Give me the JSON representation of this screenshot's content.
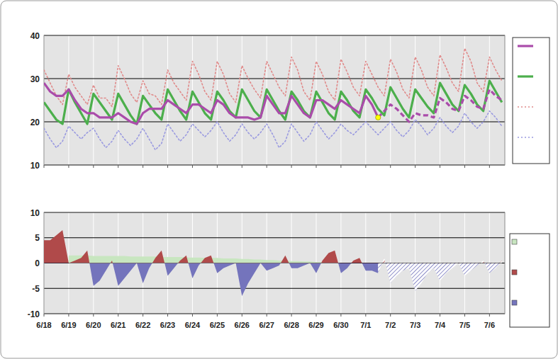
{
  "chart_data": [
    {
      "type": "line",
      "x": [
        0,
        0.25,
        0.5,
        0.75,
        1,
        1.25,
        1.5,
        1.75,
        2,
        2.25,
        2.5,
        2.75,
        3,
        3.25,
        3.5,
        3.75,
        4,
        4.25,
        4.5,
        4.75,
        5,
        5.25,
        5.5,
        5.75,
        6,
        6.25,
        6.5,
        6.75,
        7,
        7.25,
        7.5,
        7.75,
        8,
        8.25,
        8.5,
        8.75,
        9,
        9.25,
        9.5,
        9.75,
        10,
        10.25,
        10.5,
        10.75,
        11,
        11.25,
        11.5,
        11.75,
        12,
        12.25,
        12.5,
        12.75,
        13,
        13.25,
        13.5,
        13.75,
        14,
        14.25,
        14.5,
        14.75,
        15,
        15.25,
        15.5,
        15.75,
        16,
        16.25,
        16.5,
        16.75,
        17,
        17.25,
        17.5,
        17.75,
        18,
        18.25,
        18.5
      ],
      "xlim": [
        0,
        18.62
      ],
      "xticks": [
        0,
        1,
        2,
        3,
        4,
        5,
        6,
        7,
        8,
        9,
        10,
        11,
        12,
        13,
        14,
        15,
        16,
        17,
        18
      ],
      "ylim": [
        10,
        40
      ],
      "yticks": [
        10,
        20,
        30,
        40
      ],
      "grid": true,
      "legend": "right",
      "tick_labels": "y",
      "series": [
        {
          "type": "line",
          "color": "#aa4caa",
          "line_style": "solid",
          "values": [
            29,
            27,
            26,
            26,
            27.5,
            25,
            23,
            22,
            22,
            21,
            21,
            21,
            22,
            21,
            20,
            19.5,
            22,
            23,
            23,
            23,
            25,
            24,
            23,
            22,
            24,
            24,
            23,
            22,
            25,
            24,
            22,
            21,
            21,
            21,
            20.5,
            21,
            26,
            24,
            22,
            22,
            26,
            24,
            22,
            21,
            25,
            25,
            24,
            23,
            25,
            24,
            23,
            22,
            26,
            24,
            21,
            null,
            null,
            null,
            null,
            null,
            null,
            null,
            null,
            null,
            null,
            null,
            null,
            null,
            null,
            null,
            null,
            null,
            null,
            null,
            null
          ]
        },
        {
          "type": "line",
          "color": "#aa4caa",
          "line_style": "dashed",
          "values": [
            null,
            null,
            null,
            null,
            null,
            null,
            null,
            null,
            null,
            null,
            null,
            null,
            null,
            null,
            null,
            null,
            null,
            null,
            null,
            null,
            null,
            null,
            null,
            null,
            null,
            null,
            null,
            null,
            null,
            null,
            null,
            null,
            null,
            null,
            null,
            null,
            null,
            null,
            null,
            null,
            null,
            null,
            null,
            null,
            null,
            null,
            null,
            null,
            null,
            null,
            null,
            null,
            null,
            null,
            21,
            22.5,
            24,
            23,
            21.5,
            20,
            22,
            21.5,
            21.5,
            21,
            25.5,
            24.5,
            23,
            22.5,
            26,
            25,
            23.5,
            23,
            27.5,
            26,
            25
          ]
        },
        {
          "type": "line",
          "color": "#4caf4c",
          "line_style": "solid",
          "values": [
            24.5,
            22.5,
            20.5,
            19.5,
            27.5,
            24.5,
            22,
            19.5,
            26.5,
            24.5,
            22.5,
            20.5,
            26.5,
            24,
            21.5,
            19.5,
            26,
            24,
            22,
            20.5,
            27.5,
            25,
            22.5,
            20.5,
            27,
            24.5,
            22,
            20.5,
            27,
            25,
            22.5,
            21,
            27.5,
            25,
            22.5,
            21,
            27.5,
            25,
            22.5,
            20.5,
            27,
            25,
            22.5,
            21,
            27,
            24.5,
            22,
            20.5,
            27,
            25,
            22.5,
            21,
            27.5,
            25.5,
            23,
            21.5,
            28,
            25.5,
            23,
            21,
            27.5,
            25.5,
            23.5,
            22,
            29,
            26.5,
            24,
            22.5,
            28.5,
            26.5,
            24,
            22.5,
            29.5,
            27,
            24.5
          ]
        },
        {
          "type": "line",
          "color": "#e08a8a",
          "line_style": "dotted",
          "values": [
            32,
            29,
            26,
            24,
            31,
            28,
            26,
            24,
            28.5,
            25.5,
            25.5,
            23.5,
            33,
            30,
            26.5,
            24.5,
            29.5,
            26.5,
            26,
            24,
            32,
            29,
            27,
            25,
            34,
            31,
            27,
            25,
            34,
            31,
            26.5,
            24.5,
            33,
            30,
            27.5,
            25.5,
            34,
            31,
            28,
            26,
            35,
            32,
            27,
            25,
            34,
            31,
            27,
            25,
            34.5,
            31.5,
            28,
            26,
            34,
            31,
            28,
            26,
            34.5,
            31.5,
            27.5,
            25.5,
            35,
            32,
            28,
            26,
            35.5,
            32.5,
            29,
            27,
            37,
            34,
            29,
            27,
            35,
            32,
            29.5
          ]
        },
        {
          "type": "line",
          "color": "#9a9ae0",
          "line_style": "dotted",
          "values": [
            18.5,
            16,
            14,
            15.5,
            19,
            17.5,
            16,
            17.5,
            18.5,
            16,
            14,
            15.5,
            18,
            16,
            14.5,
            16,
            18.5,
            16,
            13.5,
            15,
            19.5,
            17.5,
            15.5,
            17,
            19.5,
            18,
            16.5,
            18,
            20,
            17.5,
            15.5,
            17,
            19.5,
            17.5,
            16,
            17.5,
            19.5,
            17,
            14,
            15.5,
            19.5,
            17.5,
            15.5,
            17,
            20,
            18,
            16,
            17.5,
            19.5,
            18,
            17,
            18.5,
            20,
            18.5,
            17,
            18.5,
            20,
            18,
            16.5,
            18,
            20.5,
            19,
            17,
            18.5,
            21,
            19,
            17.5,
            19,
            22,
            20,
            18.5,
            20,
            22.5,
            21,
            19
          ]
        },
        {
          "type": "scatter",
          "color": "#ffff00",
          "marker": "circle",
          "values": [
            null,
            null,
            null,
            null,
            null,
            null,
            null,
            null,
            null,
            null,
            null,
            null,
            null,
            null,
            null,
            null,
            null,
            null,
            null,
            null,
            null,
            null,
            null,
            null,
            null,
            null,
            null,
            null,
            null,
            null,
            null,
            null,
            null,
            null,
            null,
            null,
            null,
            null,
            null,
            null,
            null,
            null,
            null,
            null,
            null,
            null,
            null,
            null,
            null,
            null,
            null,
            null,
            null,
            null,
            21,
            null,
            null,
            null,
            null,
            null,
            null,
            null,
            null,
            null,
            null,
            null,
            null,
            null,
            null,
            null,
            null,
            null,
            null,
            null,
            null
          ]
        }
      ]
    },
    {
      "type": "area",
      "x": [
        0,
        0.25,
        0.5,
        0.75,
        1,
        1.25,
        1.5,
        1.75,
        2,
        2.25,
        2.5,
        2.75,
        3,
        3.25,
        3.5,
        3.75,
        4,
        4.25,
        4.5,
        4.75,
        5,
        5.25,
        5.5,
        5.75,
        6,
        6.25,
        6.5,
        6.75,
        7,
        7.25,
        7.5,
        7.75,
        8,
        8.25,
        8.5,
        8.75,
        9,
        9.25,
        9.5,
        9.75,
        10,
        10.25,
        10.5,
        10.75,
        11,
        11.25,
        11.5,
        11.75,
        12,
        12.25,
        12.5,
        12.75,
        13,
        13.25,
        13.5,
        13.75,
        14,
        14.25,
        14.5,
        14.75,
        15,
        15.25,
        15.5,
        15.75,
        16,
        16.25,
        16.5,
        16.75,
        17,
        17.25,
        17.5,
        17.75,
        18,
        18.25,
        18.5
      ],
      "xlim": [
        0,
        18.62
      ],
      "xticks": [
        {
          "value": 0,
          "label": "6/18"
        },
        {
          "value": 1,
          "label": "6/19"
        },
        {
          "value": 2,
          "label": "6/20"
        },
        {
          "value": 3,
          "label": "6/21"
        },
        {
          "value": 4,
          "label": "6/22"
        },
        {
          "value": 5,
          "label": "6/23"
        },
        {
          "value": 6,
          "label": "6/24"
        },
        {
          "value": 7,
          "label": "6/25"
        },
        {
          "value": 8,
          "label": "6/26"
        },
        {
          "value": 9,
          "label": "6/27"
        },
        {
          "value": 10,
          "label": "6/28"
        },
        {
          "value": 11,
          "label": "6/29"
        },
        {
          "value": 12,
          "label": "6/30"
        },
        {
          "value": 13,
          "label": "7/1"
        },
        {
          "value": 14,
          "label": "7/2"
        },
        {
          "value": 15,
          "label": "7/3"
        },
        {
          "value": 16,
          "label": "7/4"
        },
        {
          "value": 17,
          "label": "7/5"
        },
        {
          "value": 18,
          "label": "7/6"
        }
      ],
      "ylim": [
        -10,
        10
      ],
      "yticks": [
        -10,
        -5,
        0,
        5,
        10
      ],
      "grid": true,
      "legend": "right",
      "tick_labels": true,
      "series": [
        {
          "type": "area",
          "color": "#c8e6c0",
          "values": [
            null,
            null,
            null,
            null,
            1.5,
            1.5,
            1.5,
            1.5,
            1.4,
            1.4,
            1.4,
            1.4,
            1.4,
            1.4,
            1.3,
            1.3,
            1.3,
            1.3,
            1.3,
            1.2,
            1.2,
            1.2,
            1.2,
            1.1,
            1.1,
            1.1,
            1.0,
            1.0,
            1.0,
            0.9,
            0.9,
            0.9,
            0.8,
            0.8,
            0.7,
            0.7,
            0.6,
            0.6,
            0.5,
            0.5,
            0.4,
            0.4,
            0.3,
            0.3,
            0.2,
            0.2,
            0.1,
            0.1,
            0,
            null,
            null,
            null,
            null,
            null,
            null,
            null,
            null,
            null,
            null,
            null,
            null,
            null,
            null,
            null,
            null,
            null,
            null,
            null,
            null,
            null,
            null,
            null,
            null,
            null,
            null
          ]
        },
        {
          "type": "area",
          "colors": [
            "#b04a4a",
            "#7474bc"
          ],
          "line_style": "solid",
          "values": [
            4.5,
            4.5,
            5.5,
            6.5,
            0,
            0.5,
            1,
            2.5,
            -4.5,
            -3.5,
            -1.5,
            0.5,
            -4.5,
            -3,
            -1.5,
            0,
            -4,
            -1,
            1,
            2.5,
            -2.5,
            -1,
            0.5,
            1.5,
            -3,
            -0.5,
            1,
            1.5,
            -2,
            -1,
            -0.5,
            0,
            -6.5,
            -4,
            -2,
            0,
            -1.5,
            -1,
            -0.5,
            1.5,
            -1,
            -1,
            -0.5,
            0,
            -2,
            0.5,
            2,
            2.5,
            -2,
            -1,
            0.5,
            1,
            -1.5,
            -1.5,
            -2,
            null,
            null,
            null,
            null,
            null,
            null,
            null,
            null,
            null,
            null,
            null,
            null,
            null,
            null,
            null,
            null,
            null,
            null,
            null,
            null
          ]
        },
        {
          "type": "area",
          "colors": [
            "#b04a4a",
            "#7474bc"
          ],
          "line_style": "hatched",
          "values": [
            null,
            null,
            null,
            null,
            null,
            null,
            null,
            null,
            null,
            null,
            null,
            null,
            null,
            null,
            null,
            null,
            null,
            null,
            null,
            null,
            null,
            null,
            null,
            null,
            null,
            null,
            null,
            null,
            null,
            null,
            null,
            null,
            null,
            null,
            null,
            null,
            null,
            null,
            null,
            null,
            null,
            null,
            null,
            null,
            null,
            null,
            null,
            null,
            null,
            null,
            null,
            null,
            null,
            null,
            -2,
            1,
            -4,
            -2.5,
            -1.5,
            -1,
            -5.5,
            -4,
            -2,
            -1,
            -3.5,
            -2,
            -1,
            0,
            -2.5,
            -1.5,
            -0.5,
            0.5,
            -2,
            -1,
            0.5
          ]
        }
      ]
    }
  ]
}
